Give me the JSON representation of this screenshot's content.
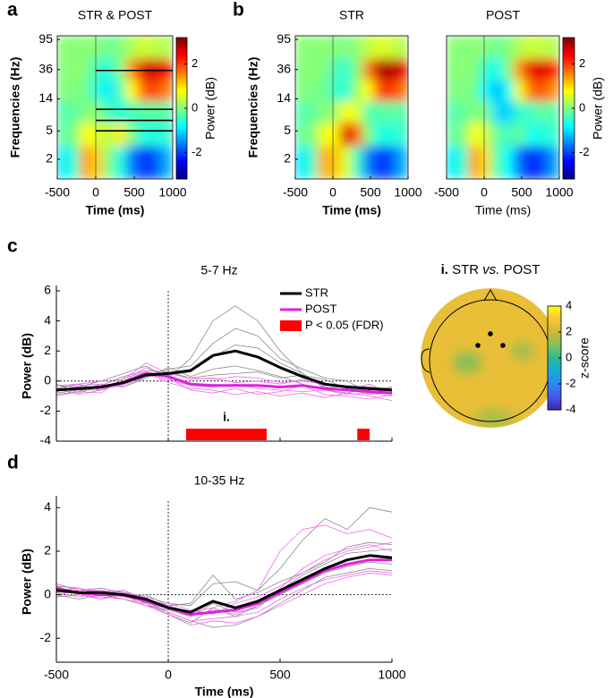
{
  "panel_labels": [
    "a",
    "b",
    "c",
    "d"
  ],
  "chart_data": [
    {
      "type": "heatmap",
      "title": "STR & POST",
      "x_label": "Time (ms)",
      "y_label": "Frequencies (Hz)",
      "x": [
        -425,
        -275,
        -125,
        25,
        175,
        325,
        475,
        625,
        775,
        925
      ],
      "y": [
        70,
        36,
        18,
        9,
        4.5,
        2
      ],
      "z": [
        [
          0.1,
          0,
          0.1,
          0,
          -0.1,
          0,
          0.3,
          0.5,
          0.4,
          0.3
        ],
        [
          0,
          0.1,
          0,
          -0.4,
          -0.6,
          0,
          1.5,
          2.6,
          2.7,
          2.4
        ],
        [
          0,
          0,
          -0.1,
          -0.6,
          -0.9,
          -0.3,
          0.8,
          1.8,
          2.0,
          1.6
        ],
        [
          -0.3,
          -0.2,
          0,
          0.1,
          -0.4,
          -0.6,
          -0.4,
          -0.3,
          -0.2,
          -0.3
        ],
        [
          -0.2,
          0,
          0.8,
          0.6,
          0.4,
          0.9,
          0,
          -0.6,
          -0.6,
          -0.5
        ],
        [
          -0.9,
          -0.5,
          1.4,
          1.1,
          0,
          -0.6,
          -1.6,
          -2.1,
          -1.9,
          -1.3
        ]
      ],
      "xlim": [
        -500,
        1000
      ],
      "xticks": [
        -500,
        0,
        500,
        1000
      ],
      "ylim": [
        1.06,
        107
      ],
      "yticks": [
        2,
        5,
        14,
        36,
        95
      ],
      "log_y": true,
      "colormap": "jet",
      "clim": [
        -3.2,
        3.2
      ],
      "cticks": [
        -2,
        0,
        2
      ],
      "colorbar_label": "Power (dB)",
      "band_lines": [
        35,
        10,
        7,
        5
      ]
    },
    {
      "type": "heatmap",
      "title": "STR",
      "x_label": "Time (ms)",
      "y_label": "Frequencies (Hz)",
      "x": [
        -425,
        -275,
        -125,
        25,
        175,
        325,
        475,
        625,
        775,
        925
      ],
      "y": [
        70,
        36,
        18,
        9,
        4.5,
        2
      ],
      "z": [
        [
          0.1,
          0,
          0.1,
          0,
          0,
          0.1,
          0.4,
          0.6,
          0.5,
          0.3
        ],
        [
          0,
          0.1,
          0,
          -0.3,
          -0.5,
          0,
          1.6,
          2.8,
          2.9,
          2.6
        ],
        [
          0,
          0,
          -0.1,
          -0.4,
          -0.6,
          0.2,
          0.8,
          1.9,
          2.1,
          1.7
        ],
        [
          -0.3,
          -0.2,
          0,
          0.1,
          0.8,
          0.6,
          -0.3,
          -0.3,
          -0.2,
          -0.3
        ],
        [
          -0.2,
          0,
          0.7,
          0.8,
          2.6,
          1.8,
          0,
          -0.6,
          -0.6,
          -0.5
        ],
        [
          -0.9,
          -0.5,
          1.3,
          1.2,
          0.6,
          -0.4,
          -1.6,
          -2.1,
          -1.9,
          -1.3
        ]
      ],
      "xlim": [
        -500,
        1000
      ],
      "xticks": [
        -500,
        0,
        500,
        1000
      ],
      "ylim": [
        1.06,
        107
      ],
      "yticks": [
        2,
        5,
        14,
        36,
        95
      ],
      "log_y": true,
      "colormap": "jet",
      "clim": [
        -3.2,
        3.2
      ]
    },
    {
      "type": "heatmap",
      "title": "POST",
      "x_label": "Time (ms)",
      "x_label_bold": false,
      "x": [
        -425,
        -275,
        -125,
        25,
        175,
        325,
        475,
        625,
        775,
        925
      ],
      "y": [
        70,
        36,
        18,
        9,
        4.5,
        2
      ],
      "z": [
        [
          0.1,
          0,
          0.1,
          0,
          -0.1,
          0,
          0.3,
          0.5,
          0.4,
          0.3
        ],
        [
          0,
          0.1,
          0,
          -0.5,
          -0.7,
          0,
          1.5,
          2.5,
          2.6,
          2.3
        ],
        [
          0,
          0,
          -0.1,
          -0.8,
          -1.2,
          -0.7,
          0.7,
          1.7,
          1.9,
          1.5
        ],
        [
          -0.3,
          -0.2,
          0,
          0,
          -1.0,
          -1.1,
          -0.5,
          -0.4,
          -0.2,
          -0.3
        ],
        [
          -0.2,
          0,
          0.8,
          0.5,
          -0.2,
          -0.4,
          -0.2,
          -0.7,
          -0.6,
          -0.5
        ],
        [
          -0.9,
          -0.5,
          1.4,
          1.0,
          -0.3,
          -0.8,
          -1.7,
          -2.2,
          -2.0,
          -1.4
        ]
      ],
      "xlim": [
        -500,
        1000
      ],
      "xticks": [
        -500,
        0,
        500,
        1000
      ],
      "ylim": [
        1.06,
        107
      ],
      "log_y": true,
      "colormap": "jet",
      "clim": [
        -3.2,
        3.2
      ],
      "cticks": [
        -2,
        0,
        2
      ],
      "colorbar_label": "Power (dB)"
    },
    {
      "type": "line",
      "title": "5-7 Hz",
      "y_label": "Power (dB)",
      "xtick_labels": false,
      "x": [
        -500,
        -400,
        -300,
        -200,
        -100,
        0,
        100,
        200,
        300,
        400,
        500,
        600,
        700,
        800,
        900,
        1000
      ],
      "xlim": [
        -500,
        1000
      ],
      "xticks": [
        -500,
        0,
        500,
        1000
      ],
      "ylim": [
        -4,
        6
      ],
      "yticks": [
        -4,
        -2,
        0,
        2,
        4,
        6
      ],
      "subjects": [
        {
          "color": "#8a8a8a",
          "values": [
            -0.3,
            -0.4,
            0,
            0.5,
            1,
            0.2,
            1.5,
            4,
            5,
            4,
            2,
            0.5,
            -0.5,
            -0.3,
            -0.6,
            -0.4
          ]
        },
        {
          "color": "#8a8a8a",
          "values": [
            -0.8,
            -0.6,
            -0.6,
            -0.2,
            0.3,
            0.8,
            1,
            2.5,
            3.5,
            3,
            1.5,
            0.8,
            0.2,
            0,
            -0.8,
            -0.5
          ]
        },
        {
          "color": "#8a8a8a",
          "values": [
            -0.5,
            -0.2,
            -0.6,
            0,
            0.6,
            0.4,
            0.6,
            1.6,
            2.4,
            2.2,
            1.2,
            0.5,
            -0.4,
            -0.6,
            -0.2,
            -0.9
          ]
        },
        {
          "color": "#8a8a8a",
          "values": [
            -0.9,
            -0.7,
            -0.2,
            -0.4,
            0.2,
            0.9,
            0.3,
            0.8,
            1,
            0.7,
            0.3,
            -0.2,
            -0.6,
            -0.8,
            -0.4,
            -0.5
          ]
        },
        {
          "color": "#8a8a8a",
          "values": [
            -0.2,
            -0.8,
            -0.3,
            0.3,
            0.7,
            0.6,
            0.2,
            0.4,
            0.5,
            0.6,
            0.2,
            0.4,
            0.1,
            -0.5,
            -0.9,
            -0.7
          ]
        },
        {
          "color": "#ee6aee",
          "values": [
            -0.5,
            -0.9,
            -0.6,
            0,
            0.9,
            0.2,
            -0.6,
            -0.8,
            -0.5,
            -0.9,
            -0.7,
            -0.3,
            -0.9,
            -1,
            -1.2,
            -0.9
          ]
        },
        {
          "color": "#ee6aee",
          "values": [
            -0.7,
            -0.3,
            -0.2,
            -0.4,
            0.3,
            0.6,
            0.1,
            0.2,
            -0.1,
            0,
            -0.2,
            0.1,
            -0.3,
            -0.4,
            -0.5,
            -0.6
          ]
        },
        {
          "color": "#ee6aee",
          "values": [
            -1,
            -0.7,
            -0.8,
            0.2,
            0.6,
            -0.1,
            -0.5,
            -0.6,
            -0.9,
            -0.7,
            -1,
            -0.8,
            -1.1,
            -0.8,
            -1,
            -1.3
          ]
        },
        {
          "color": "#ee6aee",
          "values": [
            -0.3,
            -0.2,
            0,
            0.1,
            1.2,
            0.5,
            0.2,
            0.1,
            0.3,
            0.2,
            -0.1,
            0,
            -0.2,
            -0.3,
            -0.4,
            -0.5
          ]
        },
        {
          "color": "#ee6aee",
          "values": [
            -0.6,
            -0.4,
            -0.5,
            -0.3,
            0.4,
            0.1,
            -0.3,
            -0.4,
            -0.2,
            -0.5,
            -0.6,
            -0.7,
            -0.6,
            -0.9,
            -0.8,
            -1
          ]
        }
      ],
      "series": [
        {
          "name": "STR",
          "color": "#000000",
          "values": [
            -0.6,
            -0.5,
            -0.4,
            -0.1,
            0.4,
            0.5,
            0.7,
            1.7,
            2.0,
            1.6,
            0.9,
            0.3,
            -0.2,
            -0.4,
            -0.5,
            -0.6
          ]
        },
        {
          "name": "POST",
          "color": "#e020e0",
          "values": [
            -0.6,
            -0.5,
            -0.4,
            -0.1,
            0.5,
            0.3,
            -0.2,
            -0.3,
            -0.3,
            -0.3,
            -0.4,
            -0.3,
            -0.5,
            -0.6,
            -0.7,
            -0.8
          ]
        }
      ],
      "significance": {
        "name": "P < 0.05 (FDR)",
        "color": "#ff0000",
        "intervals": [
          [
            80,
            440
          ],
          [
            845,
            900
          ]
        ],
        "annotation": "i."
      }
    },
    {
      "type": "topoplot",
      "title": [
        "i.",
        "STR",
        "vs.",
        "POST"
      ],
      "value": 2.6,
      "patch_values": [
        1.1,
        1.4,
        1.5
      ],
      "colormap": "parula",
      "clim": [
        -4,
        4
      ],
      "cticks": [
        -4,
        -2,
        0,
        2,
        4
      ],
      "colorbar_label": "z-score"
    },
    {
      "type": "line",
      "title": "10-35 Hz",
      "y_label": "Power (dB)",
      "x_label": "Time (ms)",
      "x": [
        -500,
        -400,
        -300,
        -200,
        -100,
        0,
        100,
        200,
        300,
        400,
        500,
        600,
        700,
        800,
        900,
        1000
      ],
      "xlim": [
        -500,
        1000
      ],
      "xticks": [
        -500,
        0,
        500,
        1000
      ],
      "ylim": [
        -3.1,
        4.3
      ],
      "yticks": [
        -2,
        0,
        2,
        4
      ],
      "subjects": [
        {
          "color": "#8a8a8a",
          "values": [
            0.5,
            0.2,
            0.3,
            0.1,
            -0.1,
            -0.4,
            -0.5,
            0.5,
            0.6,
            0.2,
            1.2,
            2.5,
            3.5,
            3,
            4,
            3.8
          ]
        },
        {
          "color": "#8a8a8a",
          "values": [
            -0.1,
            0,
            -0.2,
            0.1,
            -0.4,
            -0.9,
            -1.3,
            -0.6,
            -1,
            -0.5,
            0,
            0.5,
            1,
            1.3,
            1.5,
            1.4
          ]
        },
        {
          "color": "#8a8a8a",
          "values": [
            0.3,
            0.1,
            0.2,
            -0.1,
            0,
            -0.5,
            -0.4,
            0.9,
            -0.2,
            0.1,
            0.6,
            1,
            1.5,
            2.2,
            2.4,
            2.3
          ]
        },
        {
          "color": "#8a8a8a",
          "values": [
            0,
            -0.2,
            0,
            0.2,
            -0.3,
            -0.8,
            -1.2,
            -1.5,
            -1.4,
            -1,
            -0.4,
            0.2,
            0.8,
            1,
            1.2,
            1.1
          ]
        },
        {
          "color": "#8a8a8a",
          "values": [
            0.4,
            0.3,
            0,
            -0.2,
            -0.5,
            -0.7,
            -1,
            -0.4,
            -0.8,
            -0.6,
            0.2,
            0.9,
            1.4,
            1.9,
            2,
            2.1
          ]
        },
        {
          "color": "#ee6aee",
          "values": [
            0.2,
            0.3,
            0.1,
            0.2,
            -0.2,
            -0.5,
            -0.8,
            -0.6,
            -0.3,
            0.2,
            2,
            3,
            3.2,
            2.8,
            3,
            2.6
          ]
        },
        {
          "color": "#ee6aee",
          "values": [
            0.4,
            0,
            -0.1,
            -0.2,
            -0.4,
            -0.8,
            -1.2,
            -1.1,
            -1,
            -0.8,
            -0.2,
            0.3,
            0.7,
            0.9,
            1.1,
            1
          ]
        },
        {
          "color": "#ee6aee",
          "values": [
            0,
            0.2,
            0.2,
            0.1,
            -0.1,
            -0.4,
            -0.7,
            -0.9,
            -0.4,
            -0.1,
            0.4,
            1,
            1.6,
            2,
            2.2,
            2.4
          ]
        },
        {
          "color": "#ee6aee",
          "values": [
            0.3,
            0.1,
            -0.2,
            0,
            -0.5,
            -0.9,
            -1.4,
            -1.2,
            -1.3,
            -1,
            -0.5,
            0,
            0.5,
            0.8,
            1,
            0.9
          ]
        },
        {
          "color": "#ee6aee",
          "values": [
            0.1,
            -0.1,
            0.1,
            -0.1,
            -0.3,
            -0.6,
            -1,
            -0.7,
            -0.9,
            -0.5,
            0.3,
            1.2,
            1.8,
            2.1,
            2.3,
            2
          ]
        }
      ],
      "series": [
        {
          "name": "STR",
          "color": "#000000",
          "values": [
            0.2,
            0.1,
            0.1,
            0,
            -0.2,
            -0.6,
            -0.8,
            -0.3,
            -0.6,
            -0.3,
            0.2,
            0.7,
            1.2,
            1.6,
            1.8,
            1.7
          ]
        },
        {
          "name": "POST",
          "color": "#e020e0",
          "values": [
            0.3,
            0.1,
            0,
            0,
            -0.3,
            -0.6,
            -0.9,
            -0.8,
            -0.7,
            -0.4,
            0.1,
            0.6,
            1.1,
            1.4,
            1.6,
            1.6
          ]
        }
      ]
    }
  ]
}
